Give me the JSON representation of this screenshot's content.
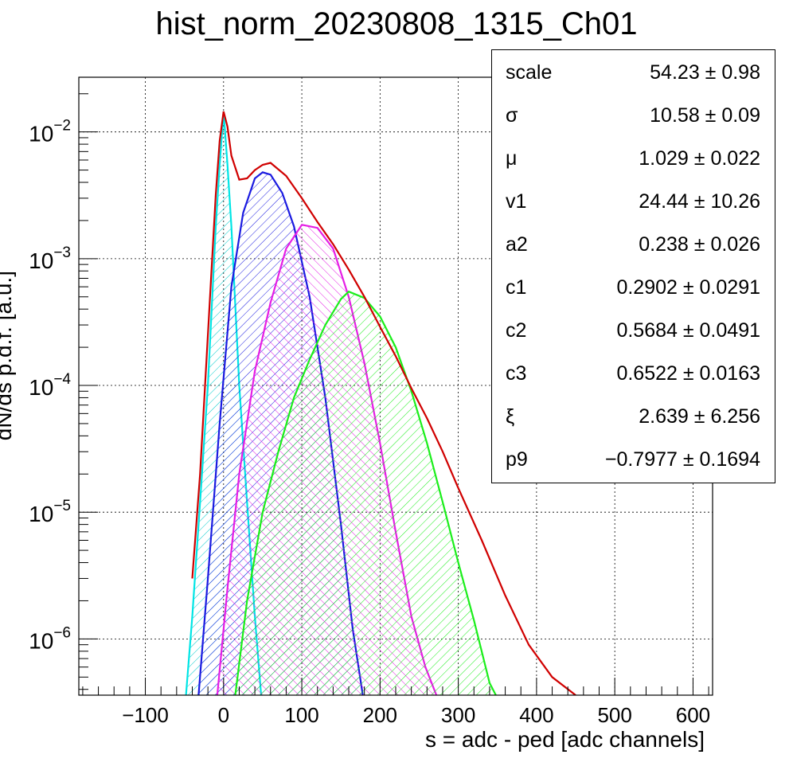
{
  "chart_data": {
    "type": "line",
    "title": "hist_norm_20230808_1315_Ch01",
    "xlabel": "s = adc - ped [adc channels]",
    "ylabel": "dN/ds p.d.f. [a.u.]",
    "x_scale": "linear",
    "y_scale": "log",
    "xlim": [
      -185,
      625
    ],
    "ylim": [
      3.6e-07,
      0.027
    ],
    "x_ticks": [
      -100,
      0,
      100,
      200,
      300,
      400,
      500,
      600
    ],
    "x_tick_labels": [
      "−100",
      "0",
      "100",
      "200",
      "300",
      "400",
      "500",
      "600"
    ],
    "y_ticks": [
      1e-06,
      1e-05,
      0.0001,
      0.001,
      0.01
    ],
    "y_tick_labels": [
      {
        "base": "10",
        "exp": "−6"
      },
      {
        "base": "10",
        "exp": "−5"
      },
      {
        "base": "10",
        "exp": "−4"
      },
      {
        "base": "10",
        "exp": "−3"
      },
      {
        "base": "10",
        "exp": "−2"
      }
    ],
    "grid": true,
    "series": [
      {
        "color": "#00e5e5",
        "hatch": "cyan",
        "x": [
          -48,
          -40,
          -30,
          -20,
          -10,
          -5,
          0,
          5,
          10,
          20,
          30,
          40,
          48
        ],
        "y": [
          3.6e-07,
          1.5e-06,
          1.2e-05,
          0.0001,
          0.0018,
          0.0055,
          0.0145,
          0.0055,
          0.0018,
          0.0001,
          1.2e-05,
          1.5e-06,
          3.6e-07
        ]
      },
      {
        "color": "#1a1ae0",
        "hatch": "blue",
        "x": [
          -32,
          -20,
          -5,
          10,
          25,
          40,
          50,
          60,
          75,
          90,
          110,
          130,
          150,
          165,
          178
        ],
        "y": [
          3.6e-07,
          3e-06,
          5e-05,
          0.0006,
          0.0023,
          0.0043,
          0.0048,
          0.0046,
          0.0033,
          0.0018,
          0.0005,
          8e-05,
          8e-06,
          1.2e-06,
          3.6e-07
        ]
      },
      {
        "color": "#e51ee5",
        "hatch": "magenta",
        "x": [
          -8,
          5,
          20,
          40,
          60,
          80,
          100,
          120,
          140,
          160,
          180,
          200,
          220,
          240,
          258,
          272
        ],
        "y": [
          3.6e-07,
          2.5e-06,
          2e-05,
          0.00013,
          0.00045,
          0.0012,
          0.00185,
          0.00175,
          0.0012,
          0.0005,
          0.00015,
          3.5e-05,
          7e-06,
          1.5e-06,
          6e-07,
          3.6e-07
        ]
      },
      {
        "color": "#1aee1a",
        "hatch": "green",
        "x": [
          15,
          30,
          50,
          70,
          90,
          110,
          130,
          150,
          160,
          180,
          200,
          220,
          240,
          260,
          280,
          300,
          320,
          340,
          348
        ],
        "y": [
          3.6e-07,
          2e-06,
          1e-05,
          3e-05,
          8e-05,
          0.00016,
          0.0003,
          0.00048,
          0.00055,
          0.00049,
          0.00035,
          0.0002,
          9e-05,
          3.5e-05,
          1.2e-05,
          4e-06,
          1.4e-06,
          4.5e-07,
          3.6e-07
        ]
      },
      {
        "color": "#d00000",
        "hatch": "none",
        "x": [
          -40,
          -30,
          -20,
          -10,
          -5,
          0,
          5,
          10,
          20,
          30,
          40,
          50,
          60,
          80,
          100,
          120,
          140,
          160,
          180,
          200,
          220,
          240,
          260,
          280,
          300,
          330,
          360,
          390,
          420,
          450
        ],
        "y": [
          3e-06,
          2e-05,
          0.00025,
          0.0032,
          0.0085,
          0.0145,
          0.011,
          0.0065,
          0.0042,
          0.0043,
          0.005,
          0.0055,
          0.0057,
          0.0045,
          0.003,
          0.00195,
          0.0013,
          0.00082,
          0.0005,
          0.00029,
          0.00017,
          9.5e-05,
          5.5e-05,
          3e-05,
          1.55e-05,
          6e-06,
          2.2e-06,
          9e-07,
          5e-07,
          3.6e-07
        ]
      }
    ],
    "stats": [
      {
        "name": "scale",
        "value": "54.23 ± 0.98"
      },
      {
        "name": "σ",
        "value": "10.58 ± 0.09"
      },
      {
        "name": "μ",
        "value": "1.029 ± 0.022"
      },
      {
        "name": "v1",
        "value": "24.44 ± 10.26"
      },
      {
        "name": "a2",
        "value": "0.238 ± 0.026"
      },
      {
        "name": "c1",
        "value": "0.2902 ± 0.0291"
      },
      {
        "name": "c2",
        "value": "0.5684 ± 0.0491"
      },
      {
        "name": "c3",
        "value": "0.6522 ± 0.0163"
      },
      {
        "name": "ξ",
        "value": "2.639 ± 6.256"
      },
      {
        "name": "p9",
        "value": "−0.7977 ± 0.1694"
      }
    ]
  }
}
